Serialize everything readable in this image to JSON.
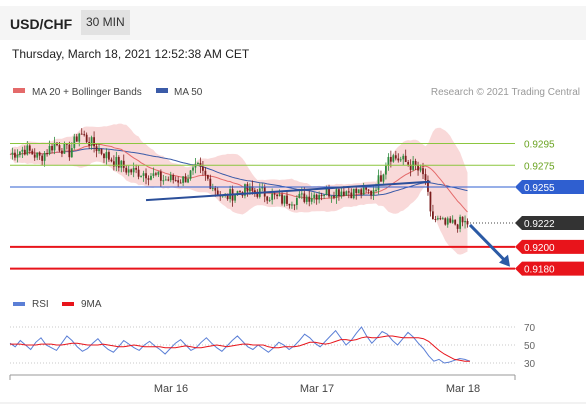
{
  "header": {
    "pair": "USD/CHF",
    "timeframe": "30 MIN"
  },
  "timestamp": "Thursday, March 18, 2021 12:52:38 AM CET",
  "legend": {
    "ma20": "MA 20 + Bollinger Bands",
    "ma50": "MA 50"
  },
  "credit": "Research © 2021 Trading Central",
  "colors": {
    "band": "#f6c9c9",
    "ma20": "#e46a6a",
    "ma50": "#3b5ba8",
    "green": "#8cc63f",
    "blue": "#2f5fd0",
    "red": "#e8141b",
    "arrow": "#2b5aa5",
    "up": "#2e8b3e",
    "down": "#7a1c1c"
  },
  "chart_data": [
    {
      "type": "candlestick",
      "x_ticks": [
        "Mar 16",
        "Mar 17",
        "Mar 18"
      ],
      "ylim": [
        0.9165,
        0.9335
      ],
      "levels": [
        {
          "value": 0.9295,
          "label": "0.9295",
          "style": "resistance",
          "color": "#8cc63f"
        },
        {
          "value": 0.9275,
          "label": "0.9275",
          "style": "resistance",
          "color": "#8cc63f"
        },
        {
          "value": 0.9255,
          "label": "0.9255",
          "style": "pivot",
          "color": "#2f5fd0"
        },
        {
          "value": 0.9222,
          "label": "0.9222",
          "style": "last",
          "color": "#333333"
        },
        {
          "value": 0.92,
          "label": "0.9200",
          "style": "support",
          "color": "#e8141b"
        },
        {
          "value": 0.918,
          "label": "0.9180",
          "style": "support",
          "color": "#e8141b"
        }
      ],
      "path_points": [
        [
          0,
          0.9285
        ],
        [
          6,
          0.929
        ],
        [
          12,
          0.9282
        ],
        [
          18,
          0.9295
        ],
        [
          24,
          0.9287
        ],
        [
          28,
          0.9305
        ],
        [
          33,
          0.9295
        ],
        [
          40,
          0.9282
        ],
        [
          48,
          0.927
        ],
        [
          55,
          0.9268
        ],
        [
          62,
          0.9262
        ],
        [
          70,
          0.9262
        ],
        [
          76,
          0.9272
        ],
        [
          80,
          0.9262
        ],
        [
          86,
          0.9245
        ],
        [
          94,
          0.9252
        ],
        [
          102,
          0.925
        ],
        [
          110,
          0.9243
        ],
        [
          118,
          0.9245
        ],
        [
          126,
          0.925
        ],
        [
          134,
          0.9252
        ],
        [
          140,
          0.925
        ],
        [
          146,
          0.925
        ],
        [
          150,
          0.9265
        ],
        [
          153,
          0.9285
        ],
        [
          158,
          0.928
        ],
        [
          164,
          0.9273
        ],
        [
          168,
          0.9262
        ],
        [
          170,
          0.9228
        ],
        [
          176,
          0.922
        ],
        [
          182,
          0.9222
        ],
        [
          186,
          0.9222
        ]
      ],
      "trendline": [
        [
          0.9243,
          0.926
        ]
      ],
      "forecast_arrow": {
        "from": 0.9222,
        "to": 0.918
      }
    },
    {
      "type": "line",
      "legend": [
        "RSI",
        "9MA"
      ],
      "y_ticks": [
        "70",
        "50",
        "30"
      ],
      "ylim": [
        20,
        80
      ],
      "rsi": [
        52,
        48,
        55,
        50,
        45,
        53,
        58,
        50,
        47,
        44,
        52,
        60,
        55,
        48,
        43,
        46,
        52,
        57,
        50,
        45,
        42,
        48,
        55,
        51,
        47,
        44,
        50,
        54,
        49,
        45,
        40,
        46,
        52,
        56,
        50,
        44,
        47,
        53,
        58,
        52,
        47,
        43,
        49,
        55,
        60,
        54,
        48,
        45,
        50,
        46,
        42,
        47,
        53,
        50,
        45,
        49,
        55,
        62,
        58,
        52,
        48,
        54,
        60,
        66,
        58,
        50,
        55,
        63,
        70,
        60,
        52,
        58,
        65,
        62,
        55,
        50,
        57,
        64,
        59,
        52,
        46,
        38,
        32,
        34,
        30,
        31,
        33,
        35,
        34,
        32
      ],
      "ma9": [
        51,
        51,
        51,
        50,
        50,
        50,
        51,
        51,
        51,
        50,
        50,
        51,
        52,
        52,
        51,
        50,
        50,
        50,
        51,
        50,
        49,
        48,
        48,
        49,
        50,
        49,
        48,
        48,
        48,
        48,
        47,
        47,
        47,
        48,
        49,
        48,
        47,
        47,
        48,
        49,
        50,
        49,
        48,
        49,
        50,
        51,
        51,
        50,
        50,
        50,
        48,
        47,
        47,
        48,
        48,
        48,
        49,
        51,
        53,
        53,
        52,
        51,
        52,
        54,
        56,
        56,
        55,
        56,
        58,
        59,
        58,
        58,
        59,
        60,
        60,
        59,
        58,
        58,
        58,
        58,
        57,
        54,
        49,
        44,
        40,
        37,
        34,
        33,
        32,
        32
      ]
    }
  ]
}
